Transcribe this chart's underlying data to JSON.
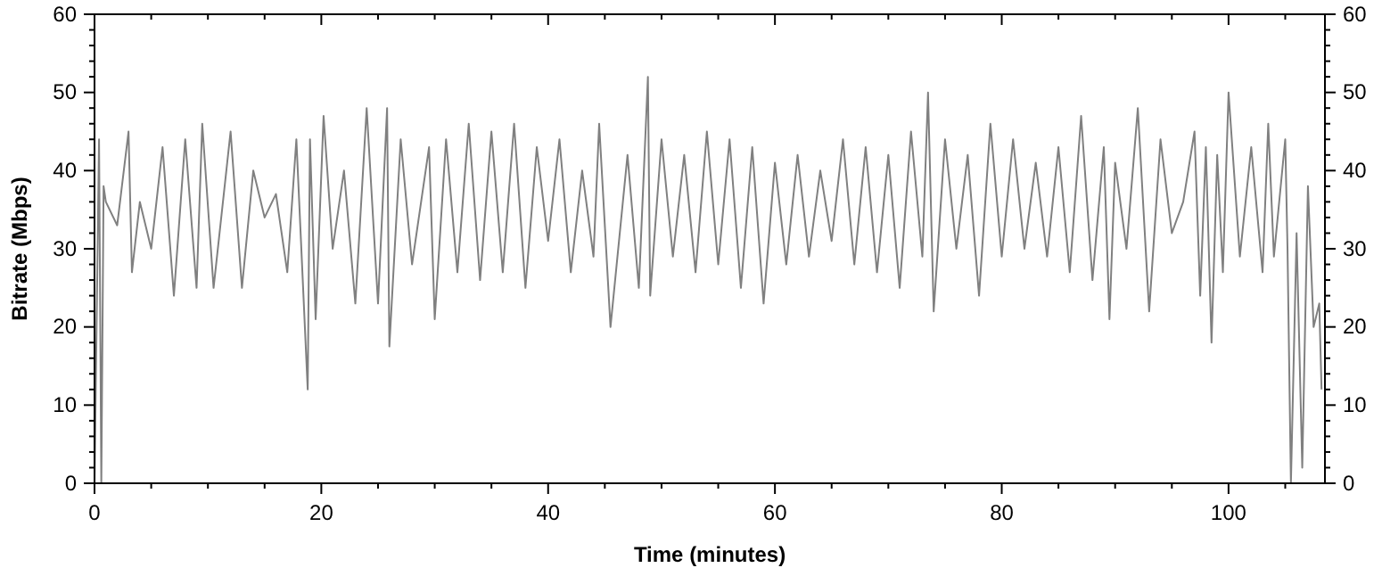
{
  "chart_data": {
    "type": "line",
    "xlabel": "Time (minutes)",
    "ylabel": "Bitrate (Mbps)",
    "xlim": [
      0,
      108.5
    ],
    "xticks": [
      0,
      {
        "value": 5,
        "label": null
      },
      {
        "value": 10,
        "label": null
      },
      {
        "value": 15,
        "label": null
      },
      20,
      {
        "value": 25,
        "label": null
      },
      {
        "value": 30,
        "label": null
      },
      {
        "value": 35,
        "label": null
      },
      40,
      {
        "value": 45,
        "label": null
      },
      {
        "value": 50,
        "label": null
      },
      {
        "value": 55,
        "label": null
      },
      60,
      {
        "value": 65,
        "label": null
      },
      {
        "value": 70,
        "label": null
      },
      {
        "value": 75,
        "label": null
      },
      80,
      {
        "value": 85,
        "label": null
      },
      {
        "value": 90,
        "label": null
      },
      {
        "value": 95,
        "label": null
      },
      100,
      {
        "value": 105,
        "label": null
      }
    ],
    "ylim": [
      0,
      60
    ],
    "yticks": [
      0,
      {
        "value": 2,
        "label": null
      },
      {
        "value": 4,
        "label": null
      },
      {
        "value": 6,
        "label": null
      },
      {
        "value": 8,
        "label": null
      },
      10,
      {
        "value": 12,
        "label": null
      },
      {
        "value": 14,
        "label": null
      },
      {
        "value": 16,
        "label": null
      },
      {
        "value": 18,
        "label": null
      },
      20,
      {
        "value": 22,
        "label": null
      },
      {
        "value": 24,
        "label": null
      },
      {
        "value": 26,
        "label": null
      },
      {
        "value": 28,
        "label": null
      },
      30,
      {
        "value": 32,
        "label": null
      },
      {
        "value": 34,
        "label": null
      },
      {
        "value": 36,
        "label": null
      },
      {
        "value": 38,
        "label": null
      },
      40,
      {
        "value": 42,
        "label": null
      },
      {
        "value": 44,
        "label": null
      },
      {
        "value": 46,
        "label": null
      },
      {
        "value": 48,
        "label": null
      },
      50,
      {
        "value": 52,
        "label": null
      },
      {
        "value": 54,
        "label": null
      },
      {
        "value": 56,
        "label": null
      },
      {
        "value": 58,
        "label": null
      },
      60
    ],
    "y2lim": [
      0,
      60
    ],
    "y2ticks": [
      0,
      {
        "value": 2,
        "label": null
      },
      {
        "value": 4,
        "label": null
      },
      {
        "value": 6,
        "label": null
      },
      {
        "value": 8,
        "label": null
      },
      10,
      {
        "value": 12,
        "label": null
      },
      {
        "value": 14,
        "label": null
      },
      {
        "value": 16,
        "label": null
      },
      {
        "value": 18,
        "label": null
      },
      20,
      {
        "value": 22,
        "label": null
      },
      {
        "value": 24,
        "label": null
      },
      {
        "value": 26,
        "label": null
      },
      {
        "value": 28,
        "label": null
      },
      30,
      {
        "value": 32,
        "label": null
      },
      {
        "value": 34,
        "label": null
      },
      {
        "value": 36,
        "label": null
      },
      {
        "value": 38,
        "label": null
      },
      40,
      {
        "value": 42,
        "label": null
      },
      {
        "value": 44,
        "label": null
      },
      {
        "value": 46,
        "label": null
      },
      {
        "value": 48,
        "label": null
      },
      50,
      {
        "value": 52,
        "label": null
      },
      {
        "value": 54,
        "label": null
      },
      {
        "value": 56,
        "label": null
      },
      {
        "value": 58,
        "label": null
      },
      60
    ],
    "grid": false,
    "marker": "none",
    "line_style": "solid",
    "series": [
      {
        "color": "#808080",
        "x": [
          0,
          0.4,
          0.6,
          0.8,
          1,
          2,
          3,
          3.3,
          4,
          5,
          6,
          7,
          8,
          9,
          9.5,
          10.5,
          12,
          13,
          14,
          15,
          16,
          17,
          17.8,
          18.8,
          19,
          19.5,
          20.2,
          21,
          22,
          23,
          24,
          25,
          25.8,
          26,
          27,
          28,
          29.5,
          30,
          31,
          32,
          33,
          34,
          35,
          36,
          37,
          38,
          39,
          40,
          41,
          42,
          43,
          44,
          44.5,
          45.5,
          47,
          48,
          48.8,
          49,
          50,
          51,
          52,
          53,
          54,
          55,
          56,
          57,
          58,
          59,
          60,
          61,
          62,
          63,
          64,
          65,
          66,
          67,
          68,
          69,
          70,
          71,
          72,
          73,
          73.5,
          74,
          75,
          76,
          77,
          78,
          79,
          80,
          81,
          82,
          83,
          84,
          85,
          86,
          87,
          88,
          89,
          89.5,
          90,
          91,
          92,
          93,
          94,
          95,
          96,
          97,
          97.5,
          98,
          98.5,
          99,
          99.5,
          100,
          101,
          102,
          103,
          103.5,
          104,
          105,
          105.2,
          105.5,
          106,
          106.5,
          107,
          107.5,
          108,
          108.2
        ],
        "values": [
          0,
          44,
          0,
          38,
          36,
          33,
          45,
          27,
          36,
          30,
          43,
          24,
          44,
          25,
          46,
          25,
          45,
          25,
          40,
          34,
          37,
          27,
          44,
          12,
          44,
          21,
          47,
          30,
          40,
          23,
          48,
          23,
          48,
          17.5,
          44,
          28,
          43,
          21,
          44,
          27,
          46,
          26,
          45,
          27,
          46,
          25,
          43,
          31,
          44,
          27,
          40,
          29,
          46,
          20,
          42,
          25,
          52,
          24,
          44,
          29,
          42,
          27,
          45,
          28,
          44,
          25,
          43,
          23,
          41,
          28,
          42,
          29,
          40,
          31,
          44,
          28,
          43,
          27,
          42,
          25,
          45,
          29,
          50,
          22,
          44,
          30,
          42,
          24,
          46,
          29,
          44,
          30,
          41,
          29,
          43,
          27,
          47,
          26,
          43,
          21,
          41,
          30,
          48,
          22,
          44,
          32,
          36,
          45,
          24,
          43,
          18,
          42,
          27,
          50,
          29,
          43,
          27,
          46,
          29,
          44,
          30,
          0,
          32,
          2,
          38,
          20,
          23,
          12
        ]
      }
    ]
  }
}
